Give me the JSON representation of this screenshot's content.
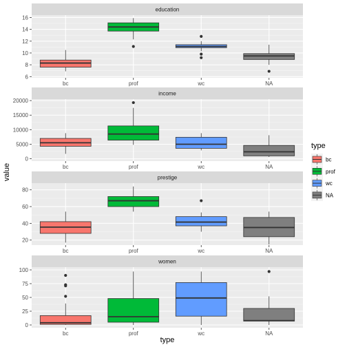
{
  "chart_data": {
    "type": "boxplot",
    "xlabel": "type",
    "ylabel": "value",
    "categories": [
      "bc",
      "prof",
      "wc",
      "NA"
    ],
    "legend": {
      "title": "type",
      "placement": "right",
      "entries": [
        {
          "label": "bc",
          "color": "#F8766D"
        },
        {
          "label": "prof",
          "color": "#00BA38"
        },
        {
          "label": "wc",
          "color": "#619CFF"
        },
        {
          "label": "NA",
          "color": "#7F7F7F"
        }
      ]
    },
    "facets": [
      {
        "title": "education",
        "ylim": [
          5.8,
          16.4
        ],
        "yticks": [
          6,
          8,
          10,
          12,
          14,
          16
        ],
        "tick_labels": [
          "6",
          "8",
          "10",
          "12",
          "14",
          "16"
        ],
        "boxes": [
          {
            "category": "bc",
            "min": 6.9,
            "q1": 7.6,
            "median": 8.3,
            "q3": 8.8,
            "max": 10.5,
            "outliers": []
          },
          {
            "category": "prof",
            "min": 12.3,
            "q1": 13.7,
            "median": 14.4,
            "q3": 15.1,
            "max": 15.9,
            "outliers": [
              11.1
            ]
          },
          {
            "category": "wc",
            "min": 10.3,
            "q1": 10.9,
            "median": 11.1,
            "q3": 11.4,
            "max": 12.0,
            "outliers": [
              12.8,
              9.8,
              9.2
            ]
          },
          {
            "category": "NA",
            "min": 8.0,
            "q1": 8.9,
            "median": 9.5,
            "q3": 9.9,
            "max": 11.4,
            "outliers": [
              6.9
            ]
          }
        ]
      },
      {
        "title": "income",
        "ylim": [
          -800,
          20500
        ],
        "yticks": [
          0,
          5000,
          10000,
          15000,
          20000
        ],
        "tick_labels": [
          "0",
          "5000",
          "10000",
          "15000",
          "20000"
        ],
        "boxes": [
          {
            "category": "bc",
            "min": 1700,
            "q1": 4300,
            "median": 5500,
            "q3": 7000,
            "max": 8800,
            "outliers": []
          },
          {
            "category": "prof",
            "min": 4800,
            "q1": 6400,
            "median": 8500,
            "q3": 11300,
            "max": 17500,
            "outliers": [
              19300
            ]
          },
          {
            "category": "wc",
            "min": 2900,
            "q1": 3600,
            "median": 5000,
            "q3": 7400,
            "max": 8800,
            "outliers": []
          },
          {
            "category": "NA",
            "min": 600,
            "q1": 1000,
            "median": 2400,
            "q3": 4600,
            "max": 8100,
            "outliers": []
          }
        ]
      },
      {
        "title": "prestige",
        "ylim": [
          14,
          88
        ],
        "yticks": [
          20,
          40,
          60,
          80
        ],
        "tick_labels": [
          "20",
          "40",
          "60",
          "80"
        ],
        "boxes": [
          {
            "category": "bc",
            "min": 17,
            "q1": 28,
            "median": 35.5,
            "q3": 42,
            "max": 54,
            "outliers": []
          },
          {
            "category": "prof",
            "min": 54,
            "q1": 60,
            "median": 67,
            "q3": 72,
            "max": 84,
            "outliers": []
          },
          {
            "category": "wc",
            "min": 30,
            "q1": 37,
            "median": 41.5,
            "q3": 48,
            "max": 53,
            "outliers": [
              67
            ]
          },
          {
            "category": "NA",
            "min": 14.8,
            "q1": 24,
            "median": 35,
            "q3": 47,
            "max": 54,
            "outliers": []
          }
        ]
      },
      {
        "title": "women",
        "ylim": [
          -5,
          105
        ],
        "yticks": [
          0,
          25,
          50,
          75,
          100
        ],
        "tick_labels": [
          "0",
          "25",
          "50",
          "75",
          "100"
        ],
        "boxes": [
          {
            "category": "bc",
            "min": 0,
            "q1": 1,
            "median": 4,
            "q3": 17,
            "max": 39,
            "outliers": [
              52,
              71,
              73,
              90
            ]
          },
          {
            "category": "prof",
            "min": 0,
            "q1": 5,
            "median": 15,
            "q3": 48,
            "max": 97,
            "outliers": []
          },
          {
            "category": "wc",
            "min": 0,
            "q1": 16,
            "median": 49,
            "q3": 77,
            "max": 97,
            "outliers": []
          },
          {
            "category": "NA",
            "min": 0,
            "q1": 7,
            "median": 8,
            "q3": 30,
            "max": 52,
            "outliers": [
              97
            ]
          }
        ]
      }
    ]
  }
}
